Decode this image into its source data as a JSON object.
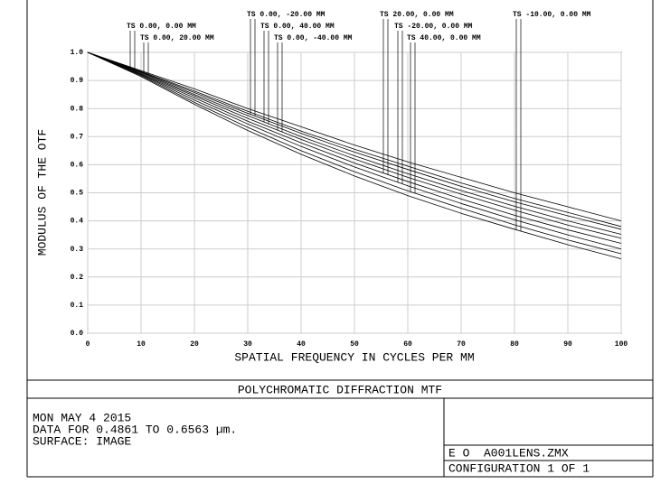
{
  "chart_data": {
    "type": "line",
    "title": "POLYCHROMATIC DIFFRACTION MTF",
    "xlabel": "SPATIAL FREQUENCY IN CYCLES PER MM",
    "ylabel": "MODULUS OF THE OTF",
    "x": [
      0,
      10,
      20,
      30,
      40,
      50,
      60,
      70,
      80,
      90,
      100
    ],
    "xlim": [
      0,
      100
    ],
    "xticks": [
      0,
      10,
      20,
      30,
      40,
      50,
      60,
      70,
      80,
      90,
      100
    ],
    "ylim": [
      0,
      1
    ],
    "yticks": [
      {
        "value": 0,
        "label": "0.0"
      },
      0.1,
      0.2,
      0.3,
      0.4,
      0.5,
      0.6,
      0.7,
      0.8,
      0.9,
      {
        "value": 1,
        "label": "1.0"
      }
    ],
    "grid": true,
    "series": [
      {
        "name": "TS 0.00, 0.00 MM",
        "color": "#000000",
        "values": [
          1,
          0.935,
          0.87,
          0.8,
          0.735,
          0.67,
          0.61,
          0.555,
          0.5,
          0.45,
          0.4
        ]
      },
      {
        "name": "TS 0.00, 20.00 MM",
        "color": "#000000",
        "values": [
          1,
          0.932,
          0.862,
          0.79,
          0.72,
          0.655,
          0.595,
          0.535,
          0.48,
          0.43,
          0.38
        ]
      },
      {
        "name": "TS 0.00, -20.00 MM",
        "color": "#000000",
        "values": [
          1,
          0.93,
          0.857,
          0.783,
          0.712,
          0.645,
          0.583,
          0.523,
          0.468,
          0.418,
          0.37
        ]
      },
      {
        "name": "TS 0.00, 40.00 MM",
        "color": "#000000",
        "values": [
          1,
          0.928,
          0.85,
          0.775,
          0.7,
          0.632,
          0.568,
          0.508,
          0.452,
          0.4,
          0.352
        ]
      },
      {
        "name": "TS 0.00, -40.00 MM",
        "color": "#000000",
        "values": [
          1,
          0.925,
          0.845,
          0.765,
          0.69,
          0.62,
          0.555,
          0.495,
          0.438,
          0.385,
          0.338
        ]
      },
      {
        "name": "TS 20.00, 0.00 MM",
        "color": "#000000",
        "values": [
          1,
          0.922,
          0.838,
          0.755,
          0.678,
          0.606,
          0.54,
          0.478,
          0.42,
          0.368,
          0.32
        ]
      },
      {
        "name": "TS -20.00, 0.00 MM",
        "color": "#000000",
        "values": [
          1,
          0.92,
          0.83,
          0.745,
          0.665,
          0.592,
          0.525,
          0.462,
          0.404,
          0.35,
          0.3
        ]
      },
      {
        "name": "TS 40.00, 0.00 MM",
        "color": "#000000",
        "values": [
          1,
          0.917,
          0.822,
          0.733,
          0.65,
          0.575,
          0.507,
          0.445,
          0.386,
          0.332,
          0.283
        ]
      },
      {
        "name": "TS -10.00, 0.00 MM",
        "color": "#000000",
        "values": [
          1,
          0.914,
          0.815,
          0.722,
          0.637,
          0.56,
          0.49,
          0.427,
          0.37,
          0.315,
          0.265
        ]
      }
    ]
  },
  "footer": {
    "date": "MON MAY 4 2015",
    "data": "DATA FOR 0.4861 TO 0.6563 µm.",
    "surface": "SURFACE: IMAGE",
    "file": "E O  A001LENS.ZMX",
    "config": "CONFIGURATION 1 OF 1"
  }
}
